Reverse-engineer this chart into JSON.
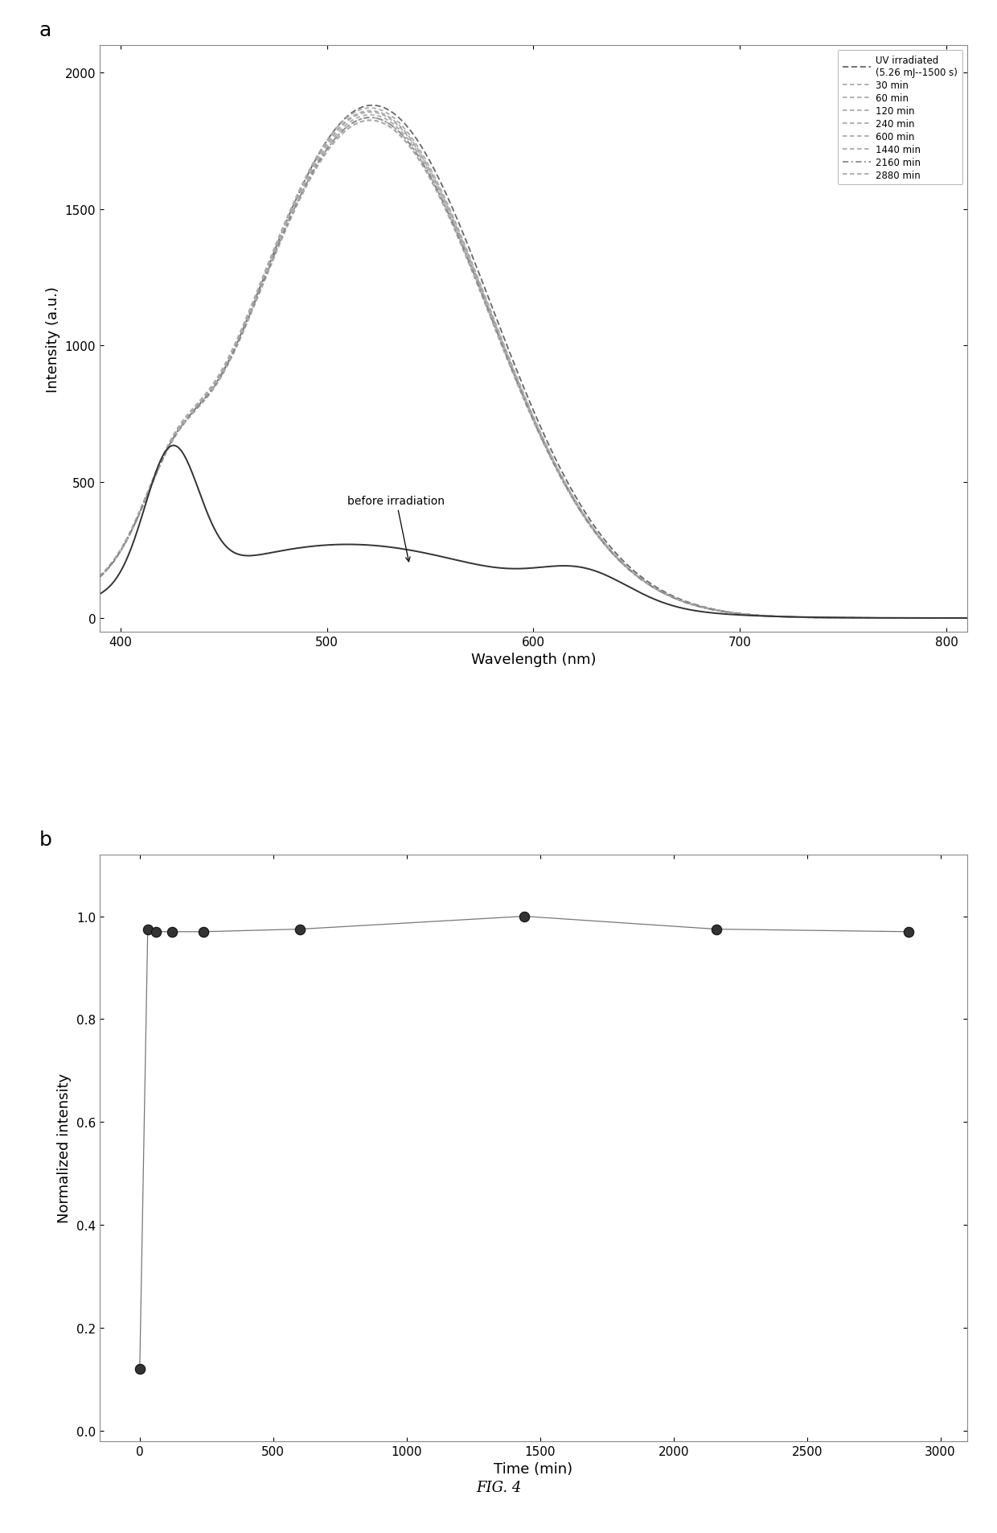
{
  "panel_a": {
    "xlabel": "Wavelength (nm)",
    "ylabel": "Intensity (a.u.)",
    "xlim": [
      390,
      810
    ],
    "ylim": [
      -50,
      2100
    ],
    "yticks": [
      0,
      500,
      1000,
      1500,
      2000
    ],
    "xticks": [
      400,
      500,
      600,
      700,
      800
    ],
    "label_a": "a",
    "annotation": "before irradiation",
    "legend_entries": [
      "UV irradiated\n(5.26 mJ--1500 s)",
      "30 min",
      "60 min",
      "120 min",
      "240 min",
      "600 min",
      "1440 min",
      "2160 min",
      "2880 min"
    ],
    "background": "#ffffff"
  },
  "panel_b": {
    "xlabel": "Time (min)",
    "ylabel": "Normalized intensity",
    "xlim": [
      -150,
      3100
    ],
    "ylim": [
      -0.02,
      1.12
    ],
    "yticks": [
      0.0,
      0.2,
      0.4,
      0.6,
      0.8,
      1.0
    ],
    "xticks": [
      0,
      500,
      1000,
      1500,
      2000,
      2500,
      3000
    ],
    "label_b": "b",
    "time_points": [
      0,
      30,
      60,
      120,
      240,
      600,
      1440,
      2160,
      2880
    ],
    "norm_intensity": [
      0.12,
      0.975,
      0.97,
      0.97,
      0.97,
      0.975,
      1.0,
      0.975,
      0.97
    ],
    "before_time": 0,
    "before_val": 0.12,
    "after_time": 30,
    "after_val": 0.975,
    "point_color": "#333333",
    "line_color": "#777777",
    "background": "#ffffff",
    "fig_label": "FIG. 4"
  }
}
